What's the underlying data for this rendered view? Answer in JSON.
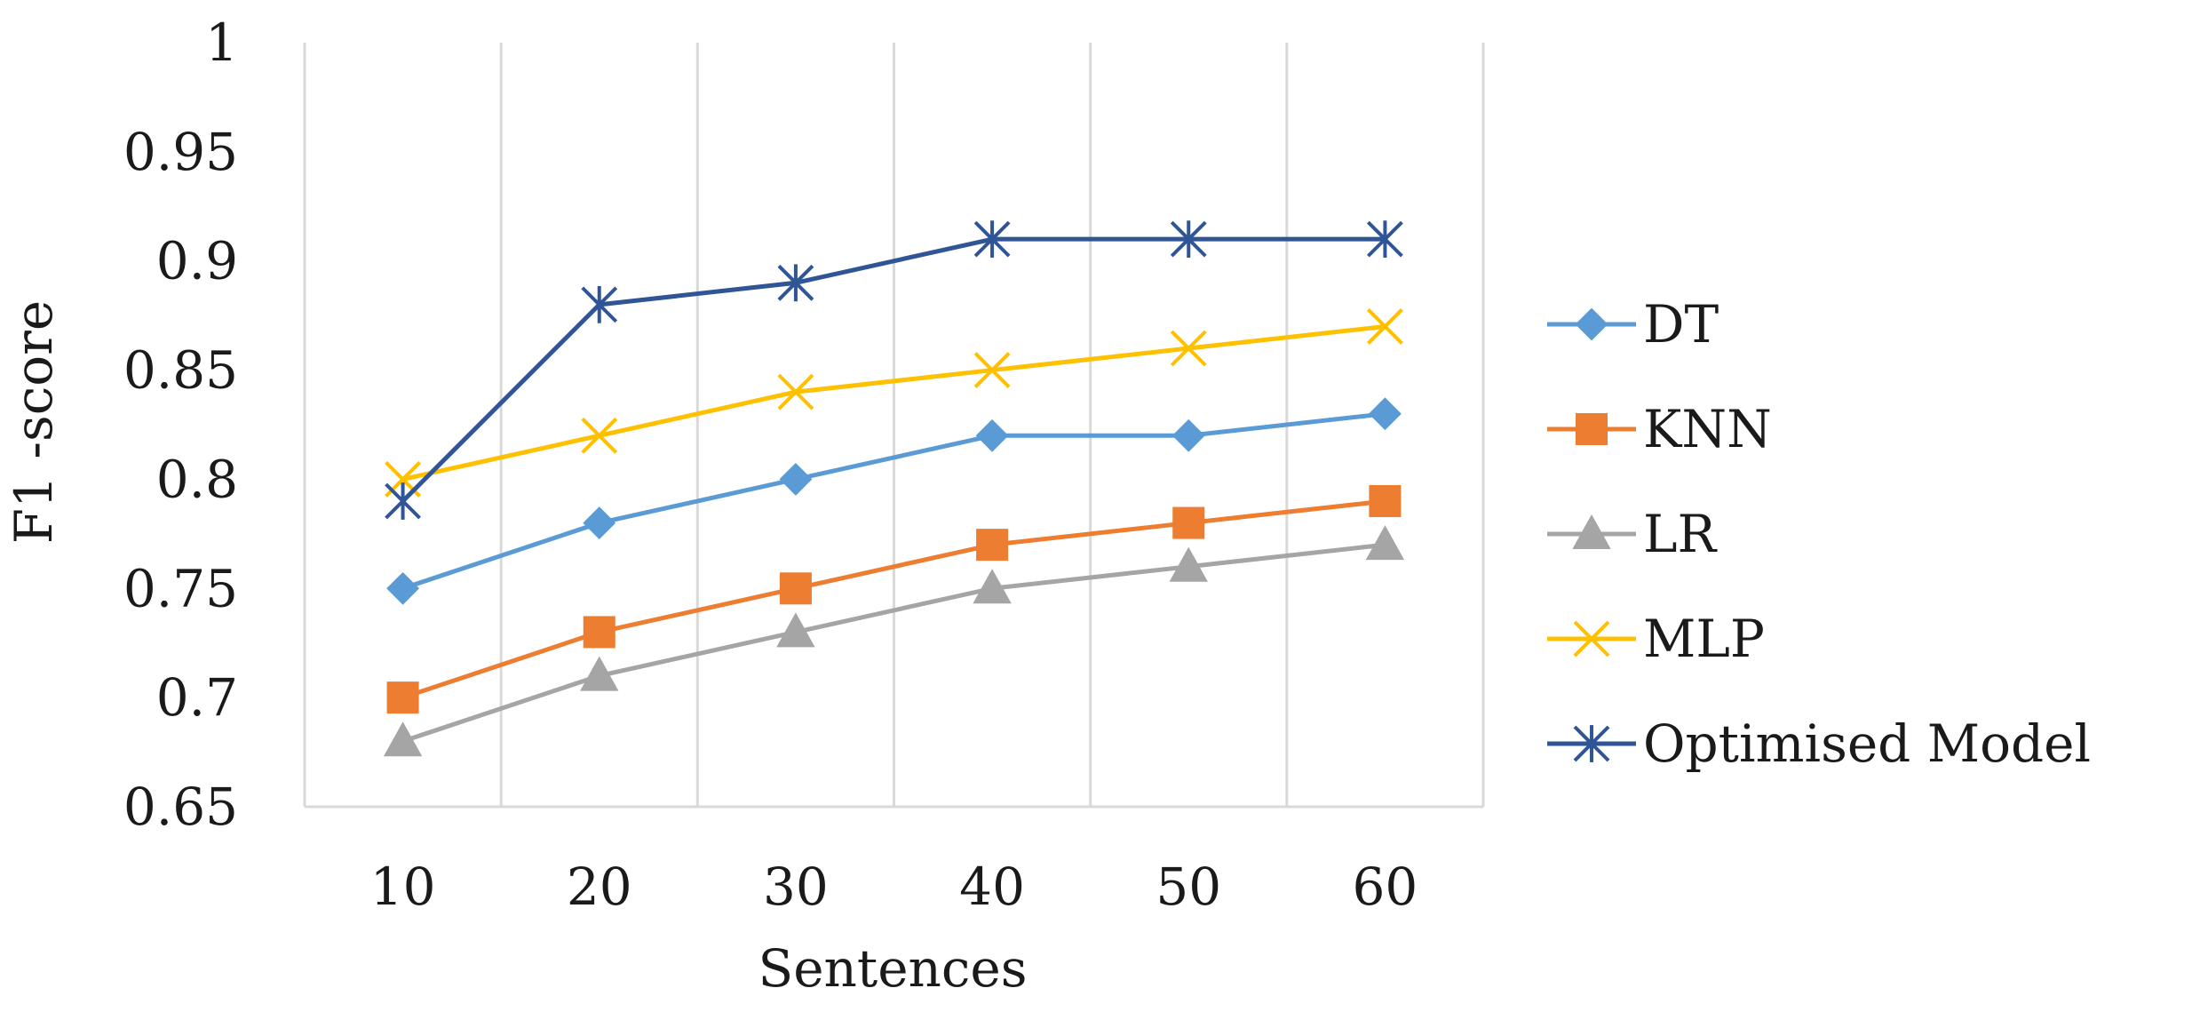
{
  "chart_data": {
    "type": "line",
    "title": "",
    "xlabel": "Sentences",
    "ylabel": "F1 -score",
    "x": [
      10,
      20,
      30,
      40,
      50,
      60
    ],
    "x_tick_labels": [
      "10",
      "20",
      "30",
      "40",
      "50",
      "60"
    ],
    "ylim": [
      0.65,
      1
    ],
    "y_ticks": [
      0.65,
      0.7,
      0.75,
      0.8,
      0.85,
      0.9,
      0.95,
      1
    ],
    "y_tick_labels": [
      "0.65",
      "0.7",
      "0.75",
      "0.8",
      "0.85",
      "0.9",
      "0.95",
      "1"
    ],
    "grid": "vertical",
    "legend": "right",
    "series": [
      {
        "name": "DT",
        "values": [
          0.75,
          0.78,
          0.8,
          0.82,
          0.82,
          0.83
        ],
        "color": "#5B9BD5",
        "marker": "diamond"
      },
      {
        "name": "KNN",
        "values": [
          0.7,
          0.73,
          0.75,
          0.77,
          0.78,
          0.79
        ],
        "color": "#ED7D31",
        "marker": "square"
      },
      {
        "name": "LR",
        "values": [
          0.68,
          0.71,
          0.73,
          0.75,
          0.76,
          0.77
        ],
        "color": "#A5A5A5",
        "marker": "triangle"
      },
      {
        "name": "MLP",
        "values": [
          0.8,
          0.82,
          0.84,
          0.85,
          0.86,
          0.87
        ],
        "color": "#FFC000",
        "marker": "x"
      },
      {
        "name": "Optimised Model",
        "values": [
          0.79,
          0.88,
          0.89,
          0.91,
          0.91,
          0.91
        ],
        "color": "#2F5597",
        "marker": "asterisk"
      }
    ]
  }
}
